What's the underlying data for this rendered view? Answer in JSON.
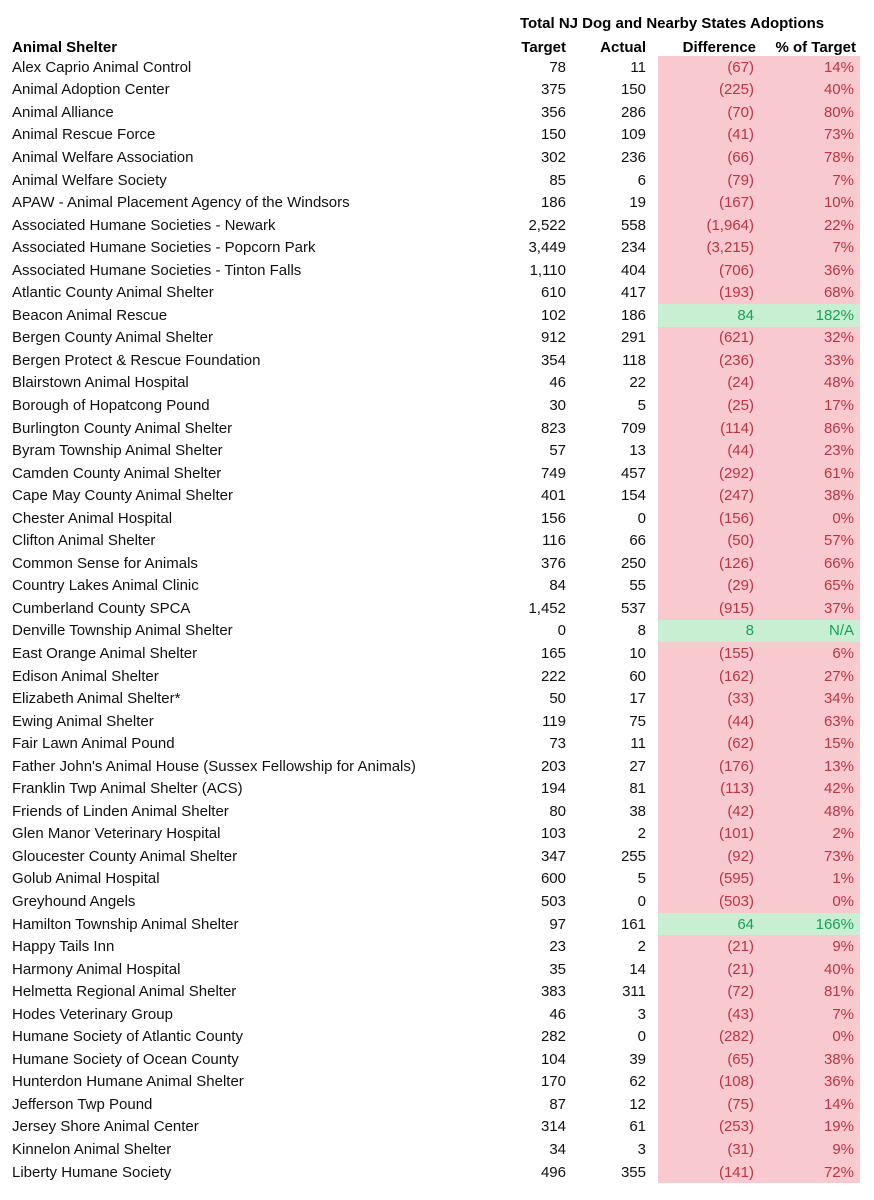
{
  "colors": {
    "negative_bg": "#f8c9ce",
    "negative_text": "#bb3543",
    "positive_bg": "#c9efd3",
    "positive_text": "#16a05c",
    "body_text": "#111111",
    "background": "#ffffff"
  },
  "chart_data": {
    "type": "table",
    "title": "Total NJ Dog and Nearby States Adoptions",
    "columns": [
      "Animal Shelter",
      "Target",
      "Actual",
      "Difference",
      "% of Target"
    ],
    "conditional_format": {
      "under_target": "light red fill with red text in Difference and % of Target columns",
      "over_target": "light green fill with green text in Difference and % of Target columns"
    },
    "rows": [
      {
        "shelter": "Alex Caprio Animal Control",
        "target": "78",
        "actual": "11",
        "difference": "(67)",
        "pct_of_target": "14%",
        "status": "under"
      },
      {
        "shelter": "Animal Adoption Center",
        "target": "375",
        "actual": "150",
        "difference": "(225)",
        "pct_of_target": "40%",
        "status": "under"
      },
      {
        "shelter": "Animal Alliance",
        "target": "356",
        "actual": "286",
        "difference": "(70)",
        "pct_of_target": "80%",
        "status": "under"
      },
      {
        "shelter": "Animal Rescue Force",
        "target": "150",
        "actual": "109",
        "difference": "(41)",
        "pct_of_target": "73%",
        "status": "under"
      },
      {
        "shelter": "Animal Welfare Association",
        "target": "302",
        "actual": "236",
        "difference": "(66)",
        "pct_of_target": "78%",
        "status": "under"
      },
      {
        "shelter": "Animal Welfare Society",
        "target": "85",
        "actual": "6",
        "difference": "(79)",
        "pct_of_target": "7%",
        "status": "under"
      },
      {
        "shelter": "APAW - Animal Placement Agency of the Windsors",
        "target": "186",
        "actual": "19",
        "difference": "(167)",
        "pct_of_target": "10%",
        "status": "under"
      },
      {
        "shelter": "Associated Humane Societies - Newark",
        "target": "2,522",
        "actual": "558",
        "difference": "(1,964)",
        "pct_of_target": "22%",
        "status": "under"
      },
      {
        "shelter": "Associated Humane Societies - Popcorn Park",
        "target": "3,449",
        "actual": "234",
        "difference": "(3,215)",
        "pct_of_target": "7%",
        "status": "under"
      },
      {
        "shelter": "Associated Humane Societies - Tinton Falls",
        "target": "1,110",
        "actual": "404",
        "difference": "(706)",
        "pct_of_target": "36%",
        "status": "under"
      },
      {
        "shelter": "Atlantic County Animal Shelter",
        "target": "610",
        "actual": "417",
        "difference": "(193)",
        "pct_of_target": "68%",
        "status": "under"
      },
      {
        "shelter": "Beacon Animal Rescue",
        "target": "102",
        "actual": "186",
        "difference": "84",
        "pct_of_target": "182%",
        "status": "over"
      },
      {
        "shelter": "Bergen County Animal Shelter",
        "target": "912",
        "actual": "291",
        "difference": "(621)",
        "pct_of_target": "32%",
        "status": "under"
      },
      {
        "shelter": "Bergen Protect & Rescue Foundation",
        "target": "354",
        "actual": "118",
        "difference": "(236)",
        "pct_of_target": "33%",
        "status": "under"
      },
      {
        "shelter": "Blairstown Animal Hospital",
        "target": "46",
        "actual": "22",
        "difference": "(24)",
        "pct_of_target": "48%",
        "status": "under"
      },
      {
        "shelter": "Borough of Hopatcong Pound",
        "target": "30",
        "actual": "5",
        "difference": "(25)",
        "pct_of_target": "17%",
        "status": "under"
      },
      {
        "shelter": "Burlington County Animal Shelter",
        "target": "823",
        "actual": "709",
        "difference": "(114)",
        "pct_of_target": "86%",
        "status": "under"
      },
      {
        "shelter": "Byram Township Animal Shelter",
        "target": "57",
        "actual": "13",
        "difference": "(44)",
        "pct_of_target": "23%",
        "status": "under"
      },
      {
        "shelter": "Camden County Animal Shelter",
        "target": "749",
        "actual": "457",
        "difference": "(292)",
        "pct_of_target": "61%",
        "status": "under"
      },
      {
        "shelter": "Cape May County Animal Shelter",
        "target": "401",
        "actual": "154",
        "difference": "(247)",
        "pct_of_target": "38%",
        "status": "under"
      },
      {
        "shelter": "Chester Animal Hospital",
        "target": "156",
        "actual": "0",
        "difference": "(156)",
        "pct_of_target": "0%",
        "status": "under"
      },
      {
        "shelter": "Clifton Animal Shelter",
        "target": "116",
        "actual": "66",
        "difference": "(50)",
        "pct_of_target": "57%",
        "status": "under"
      },
      {
        "shelter": "Common Sense for Animals",
        "target": "376",
        "actual": "250",
        "difference": "(126)",
        "pct_of_target": "66%",
        "status": "under"
      },
      {
        "shelter": "Country Lakes Animal Clinic",
        "target": "84",
        "actual": "55",
        "difference": "(29)",
        "pct_of_target": "65%",
        "status": "under"
      },
      {
        "shelter": "Cumberland County SPCA",
        "target": "1,452",
        "actual": "537",
        "difference": "(915)",
        "pct_of_target": "37%",
        "status": "under"
      },
      {
        "shelter": "Denville Township Animal Shelter",
        "target": "0",
        "actual": "8",
        "difference": "8",
        "pct_of_target": "N/A",
        "status": "over"
      },
      {
        "shelter": "East Orange Animal Shelter",
        "target": "165",
        "actual": "10",
        "difference": "(155)",
        "pct_of_target": "6%",
        "status": "under"
      },
      {
        "shelter": "Edison Animal Shelter",
        "target": "222",
        "actual": "60",
        "difference": "(162)",
        "pct_of_target": "27%",
        "status": "under"
      },
      {
        "shelter": "Elizabeth Animal Shelter*",
        "target": "50",
        "actual": "17",
        "difference": "(33)",
        "pct_of_target": "34%",
        "status": "under"
      },
      {
        "shelter": "Ewing Animal Shelter",
        "target": "119",
        "actual": "75",
        "difference": "(44)",
        "pct_of_target": "63%",
        "status": "under"
      },
      {
        "shelter": "Fair Lawn Animal Pound",
        "target": "73",
        "actual": "11",
        "difference": "(62)",
        "pct_of_target": "15%",
        "status": "under"
      },
      {
        "shelter": "Father John's Animal House (Sussex Fellowship for Animals)",
        "target": "203",
        "actual": "27",
        "difference": "(176)",
        "pct_of_target": "13%",
        "status": "under"
      },
      {
        "shelter": "Franklin Twp Animal Shelter (ACS)",
        "target": "194",
        "actual": "81",
        "difference": "(113)",
        "pct_of_target": "42%",
        "status": "under"
      },
      {
        "shelter": "Friends of Linden Animal Shelter",
        "target": "80",
        "actual": "38",
        "difference": "(42)",
        "pct_of_target": "48%",
        "status": "under"
      },
      {
        "shelter": "Glen Manor Veterinary Hospital",
        "target": "103",
        "actual": "2",
        "difference": "(101)",
        "pct_of_target": "2%",
        "status": "under"
      },
      {
        "shelter": "Gloucester County Animal Shelter",
        "target": "347",
        "actual": "255",
        "difference": "(92)",
        "pct_of_target": "73%",
        "status": "under"
      },
      {
        "shelter": "Golub Animal Hospital",
        "target": "600",
        "actual": "5",
        "difference": "(595)",
        "pct_of_target": "1%",
        "status": "under"
      },
      {
        "shelter": "Greyhound Angels",
        "target": "503",
        "actual": "0",
        "difference": "(503)",
        "pct_of_target": "0%",
        "status": "under"
      },
      {
        "shelter": "Hamilton Township Animal Shelter",
        "target": "97",
        "actual": "161",
        "difference": "64",
        "pct_of_target": "166%",
        "status": "over"
      },
      {
        "shelter": "Happy Tails Inn",
        "target": "23",
        "actual": "2",
        "difference": "(21)",
        "pct_of_target": "9%",
        "status": "under"
      },
      {
        "shelter": "Harmony Animal Hospital",
        "target": "35",
        "actual": "14",
        "difference": "(21)",
        "pct_of_target": "40%",
        "status": "under"
      },
      {
        "shelter": "Helmetta Regional Animal Shelter",
        "target": "383",
        "actual": "311",
        "difference": "(72)",
        "pct_of_target": "81%",
        "status": "under"
      },
      {
        "shelter": "Hodes Veterinary Group",
        "target": "46",
        "actual": "3",
        "difference": "(43)",
        "pct_of_target": "7%",
        "status": "under"
      },
      {
        "shelter": "Humane Society of Atlantic County",
        "target": "282",
        "actual": "0",
        "difference": "(282)",
        "pct_of_target": "0%",
        "status": "under"
      },
      {
        "shelter": "Humane Society of Ocean County",
        "target": "104",
        "actual": "39",
        "difference": "(65)",
        "pct_of_target": "38%",
        "status": "under"
      },
      {
        "shelter": "Hunterdon Humane Animal Shelter",
        "target": "170",
        "actual": "62",
        "difference": "(108)",
        "pct_of_target": "36%",
        "status": "under"
      },
      {
        "shelter": "Jefferson Twp Pound",
        "target": "87",
        "actual": "12",
        "difference": "(75)",
        "pct_of_target": "14%",
        "status": "under"
      },
      {
        "shelter": "Jersey Shore Animal Center",
        "target": "314",
        "actual": "61",
        "difference": "(253)",
        "pct_of_target": "19%",
        "status": "under"
      },
      {
        "shelter": "Kinnelon Animal Shelter",
        "target": "34",
        "actual": "3",
        "difference": "(31)",
        "pct_of_target": "9%",
        "status": "under"
      },
      {
        "shelter": "Liberty Humane Society",
        "target": "496",
        "actual": "355",
        "difference": "(141)",
        "pct_of_target": "72%",
        "status": "under"
      }
    ]
  }
}
